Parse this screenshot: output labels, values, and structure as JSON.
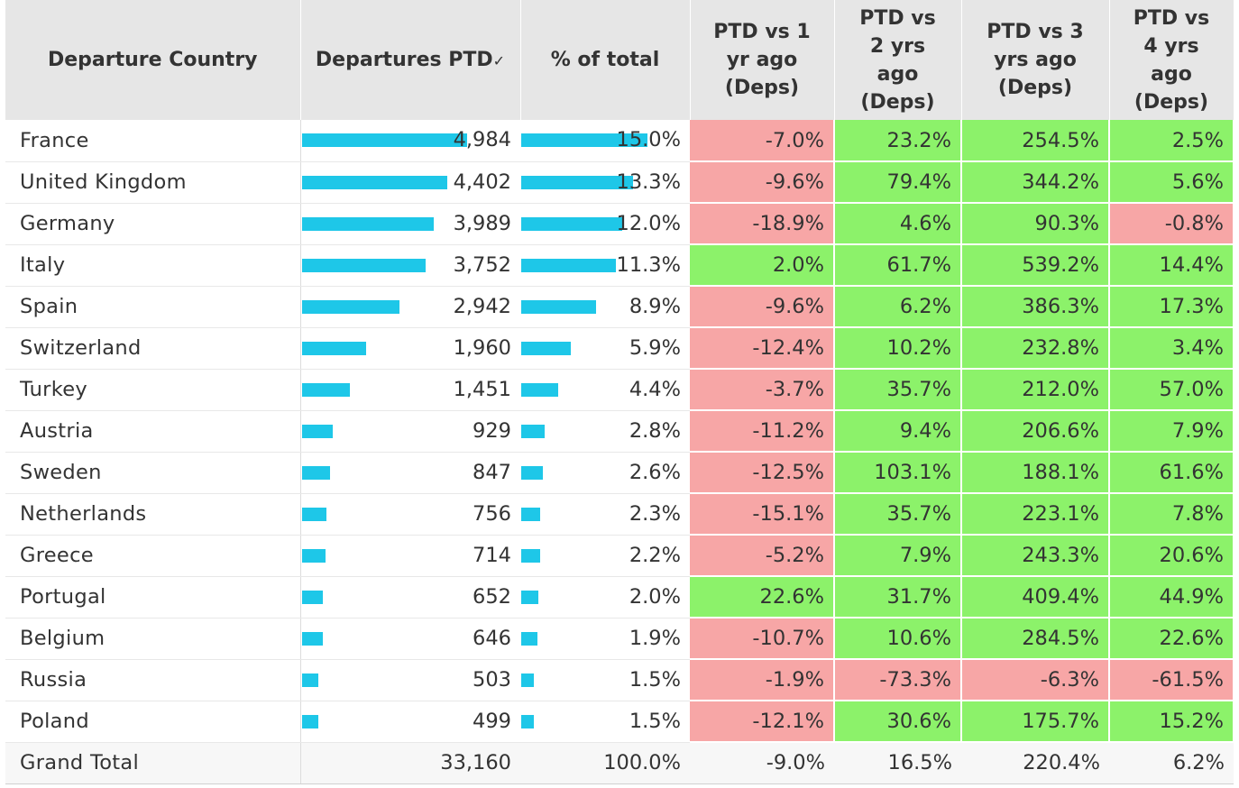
{
  "chart_data": {
    "type": "table",
    "columns": [
      "Departure Country",
      "Departures PTD",
      "% of total",
      "PTD vs 1 yr ago (Deps)",
      "PTD vs 2 yrs ago (Deps)",
      "PTD vs 3 yrs ago (Deps)",
      "PTD vs 4 yrs ago (Deps)"
    ],
    "header_lines": [
      [
        "Departure Country"
      ],
      [
        "Departures PTD"
      ],
      [
        "% of total"
      ],
      [
        "PTD vs 1",
        "yr ago",
        "(Deps)"
      ],
      [
        "PTD vs",
        "2 yrs",
        "ago",
        "(Deps)"
      ],
      [
        "PTD vs 3",
        "yrs ago",
        "(Deps)"
      ],
      [
        "PTD vs",
        "4 yrs",
        "ago",
        "(Deps)"
      ]
    ],
    "sort_indicator": "✓",
    "colors": {
      "bar": "#1ec7e8",
      "positive": "#8cf26a",
      "negative": "#f7a6a6",
      "header": "#e6e6e6"
    },
    "rows": [
      {
        "country": "France",
        "departures": "4,984",
        "departures_value": 4984,
        "pct": "15.0%",
        "pct_value": 15.0,
        "vs1": "-7.0%",
        "vs2": "23.2%",
        "vs3": "254.5%",
        "vs4": "2.5%"
      },
      {
        "country": "United Kingdom",
        "departures": "4,402",
        "departures_value": 4402,
        "pct": "13.3%",
        "pct_value": 13.3,
        "vs1": "-9.6%",
        "vs2": "79.4%",
        "vs3": "344.2%",
        "vs4": "5.6%"
      },
      {
        "country": "Germany",
        "departures": "3,989",
        "departures_value": 3989,
        "pct": "12.0%",
        "pct_value": 12.0,
        "vs1": "-18.9%",
        "vs2": "4.6%",
        "vs3": "90.3%",
        "vs4": "-0.8%"
      },
      {
        "country": "Italy",
        "departures": "3,752",
        "departures_value": 3752,
        "pct": "11.3%",
        "pct_value": 11.3,
        "vs1": "2.0%",
        "vs2": "61.7%",
        "vs3": "539.2%",
        "vs4": "14.4%"
      },
      {
        "country": "Spain",
        "departures": "2,942",
        "departures_value": 2942,
        "pct": "8.9%",
        "pct_value": 8.9,
        "vs1": "-9.6%",
        "vs2": "6.2%",
        "vs3": "386.3%",
        "vs4": "17.3%"
      },
      {
        "country": "Switzerland",
        "departures": "1,960",
        "departures_value": 1960,
        "pct": "5.9%",
        "pct_value": 5.9,
        "vs1": "-12.4%",
        "vs2": "10.2%",
        "vs3": "232.8%",
        "vs4": "3.4%"
      },
      {
        "country": "Turkey",
        "departures": "1,451",
        "departures_value": 1451,
        "pct": "4.4%",
        "pct_value": 4.4,
        "vs1": "-3.7%",
        "vs2": "35.7%",
        "vs3": "212.0%",
        "vs4": "57.0%"
      },
      {
        "country": "Austria",
        "departures": "929",
        "departures_value": 929,
        "pct": "2.8%",
        "pct_value": 2.8,
        "vs1": "-11.2%",
        "vs2": "9.4%",
        "vs3": "206.6%",
        "vs4": "7.9%"
      },
      {
        "country": "Sweden",
        "departures": "847",
        "departures_value": 847,
        "pct": "2.6%",
        "pct_value": 2.6,
        "vs1": "-12.5%",
        "vs2": "103.1%",
        "vs3": "188.1%",
        "vs4": "61.6%"
      },
      {
        "country": "Netherlands",
        "departures": "756",
        "departures_value": 756,
        "pct": "2.3%",
        "pct_value": 2.3,
        "vs1": "-15.1%",
        "vs2": "35.7%",
        "vs3": "223.1%",
        "vs4": "7.8%"
      },
      {
        "country": "Greece",
        "departures": "714",
        "departures_value": 714,
        "pct": "2.2%",
        "pct_value": 2.2,
        "vs1": "-5.2%",
        "vs2": "7.9%",
        "vs3": "243.3%",
        "vs4": "20.6%"
      },
      {
        "country": "Portugal",
        "departures": "652",
        "departures_value": 652,
        "pct": "2.0%",
        "pct_value": 2.0,
        "vs1": "22.6%",
        "vs2": "31.7%",
        "vs3": "409.4%",
        "vs4": "44.9%"
      },
      {
        "country": "Belgium",
        "departures": "646",
        "departures_value": 646,
        "pct": "1.9%",
        "pct_value": 1.9,
        "vs1": "-10.7%",
        "vs2": "10.6%",
        "vs3": "284.5%",
        "vs4": "22.6%"
      },
      {
        "country": "Russia",
        "departures": "503",
        "departures_value": 503,
        "pct": "1.5%",
        "pct_value": 1.5,
        "vs1": "-1.9%",
        "vs2": "-73.3%",
        "vs3": "-6.3%",
        "vs4": "-61.5%"
      },
      {
        "country": "Poland",
        "departures": "499",
        "departures_value": 499,
        "pct": "1.5%",
        "pct_value": 1.5,
        "vs1": "-12.1%",
        "vs2": "30.6%",
        "vs3": "175.7%",
        "vs4": "15.2%"
      }
    ],
    "total": {
      "country": "Grand Total",
      "departures": "33,160",
      "pct": "100.0%",
      "vs1": "-9.0%",
      "vs2": "16.5%",
      "vs3": "220.4%",
      "vs4": "6.2%"
    }
  }
}
